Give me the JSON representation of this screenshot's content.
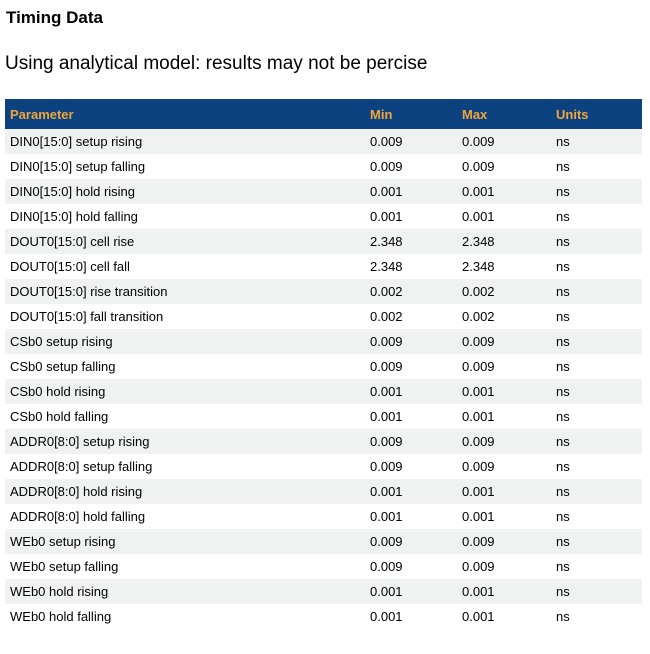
{
  "page": {
    "title": "Timing Data",
    "subtitle": "Using analytical model: results may not be percise"
  },
  "table": {
    "columns": [
      "Parameter",
      "Min",
      "Max",
      "Units"
    ],
    "rows": [
      {
        "parameter": "DIN0[15:0] setup rising",
        "min": "0.009",
        "max": "0.009",
        "units": "ns"
      },
      {
        "parameter": "DIN0[15:0] setup falling",
        "min": "0.009",
        "max": "0.009",
        "units": "ns"
      },
      {
        "parameter": "DIN0[15:0] hold rising",
        "min": "0.001",
        "max": "0.001",
        "units": "ns"
      },
      {
        "parameter": "DIN0[15:0] hold falling",
        "min": "0.001",
        "max": "0.001",
        "units": "ns"
      },
      {
        "parameter": "DOUT0[15:0] cell rise",
        "min": "2.348",
        "max": "2.348",
        "units": "ns"
      },
      {
        "parameter": "DOUT0[15:0] cell fall",
        "min": "2.348",
        "max": "2.348",
        "units": "ns"
      },
      {
        "parameter": "DOUT0[15:0] rise transition",
        "min": "0.002",
        "max": "0.002",
        "units": "ns"
      },
      {
        "parameter": "DOUT0[15:0] fall transition",
        "min": "0.002",
        "max": "0.002",
        "units": "ns"
      },
      {
        "parameter": "CSb0 setup rising",
        "min": "0.009",
        "max": "0.009",
        "units": "ns"
      },
      {
        "parameter": "CSb0 setup falling",
        "min": "0.009",
        "max": "0.009",
        "units": "ns"
      },
      {
        "parameter": "CSb0 hold rising",
        "min": "0.001",
        "max": "0.001",
        "units": "ns"
      },
      {
        "parameter": "CSb0 hold falling",
        "min": "0.001",
        "max": "0.001",
        "units": "ns"
      },
      {
        "parameter": "ADDR0[8:0] setup rising",
        "min": "0.009",
        "max": "0.009",
        "units": "ns"
      },
      {
        "parameter": "ADDR0[8:0] setup falling",
        "min": "0.009",
        "max": "0.009",
        "units": "ns"
      },
      {
        "parameter": "ADDR0[8:0] hold rising",
        "min": "0.001",
        "max": "0.001",
        "units": "ns"
      },
      {
        "parameter": "ADDR0[8:0] hold falling",
        "min": "0.001",
        "max": "0.001",
        "units": "ns"
      },
      {
        "parameter": "WEb0 setup rising",
        "min": "0.009",
        "max": "0.009",
        "units": "ns"
      },
      {
        "parameter": "WEb0 setup falling",
        "min": "0.009",
        "max": "0.009",
        "units": "ns"
      },
      {
        "parameter": "WEb0 hold rising",
        "min": "0.001",
        "max": "0.001",
        "units": "ns"
      },
      {
        "parameter": "WEb0 hold falling",
        "min": "0.001",
        "max": "0.001",
        "units": "ns"
      }
    ]
  },
  "colors": {
    "header_bg": "#0d4281",
    "header_text": "#efa43c",
    "row_alt_bg": "#f0f2f1"
  }
}
